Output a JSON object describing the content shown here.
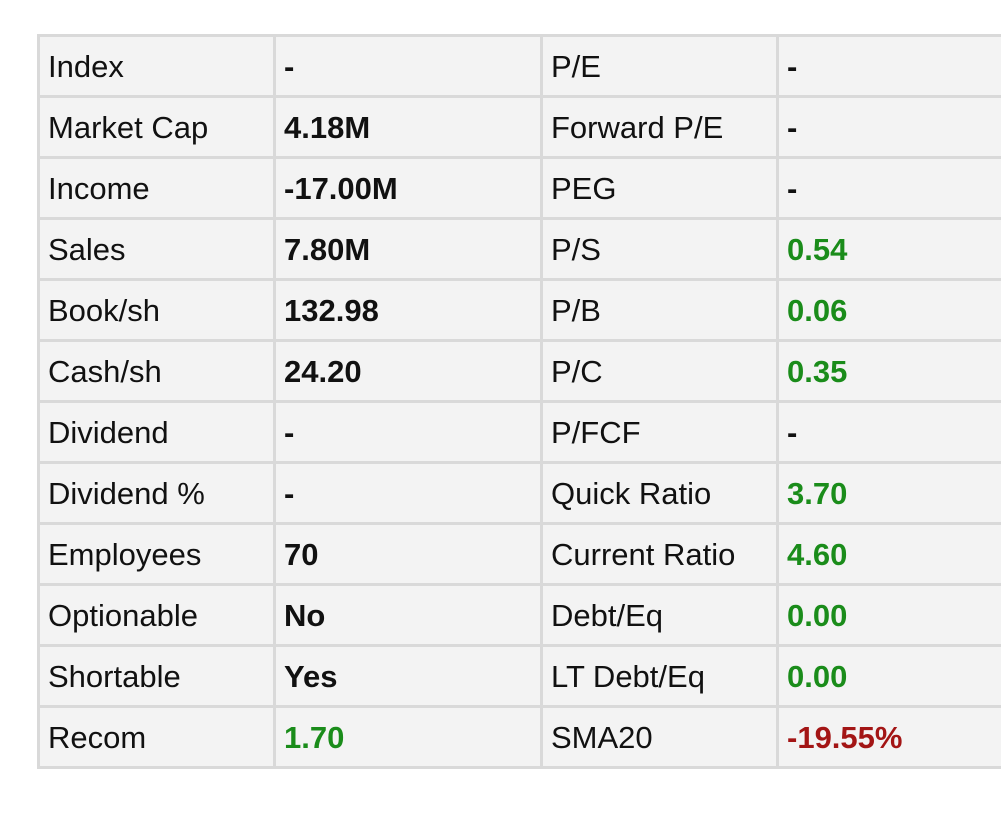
{
  "colors": {
    "positive": "#1a8c1a",
    "negative": "#a31515",
    "neutral": "#111111",
    "cell_bg": "#f3f3f3",
    "border": "#d9d9d9"
  },
  "rows": [
    {
      "label1": "Index",
      "value1": "-",
      "tone1": "neutral",
      "label2": "P/E",
      "value2": "-",
      "tone2": "neutral"
    },
    {
      "label1": "Market Cap",
      "value1": "4.18M",
      "tone1": "neutral",
      "label2": "Forward P/E",
      "value2": "-",
      "tone2": "neutral"
    },
    {
      "label1": "Income",
      "value1": "-17.00M",
      "tone1": "neutral",
      "label2": "PEG",
      "value2": "-",
      "tone2": "neutral"
    },
    {
      "label1": "Sales",
      "value1": "7.80M",
      "tone1": "neutral",
      "label2": "P/S",
      "value2": "0.54",
      "tone2": "positive"
    },
    {
      "label1": "Book/sh",
      "value1": "132.98",
      "tone1": "neutral",
      "label2": "P/B",
      "value2": "0.06",
      "tone2": "positive"
    },
    {
      "label1": "Cash/sh",
      "value1": "24.20",
      "tone1": "neutral",
      "label2": "P/C",
      "value2": "0.35",
      "tone2": "positive"
    },
    {
      "label1": "Dividend",
      "value1": "-",
      "tone1": "neutral",
      "label2": "P/FCF",
      "value2": "-",
      "tone2": "neutral"
    },
    {
      "label1": "Dividend %",
      "value1": "-",
      "tone1": "neutral",
      "label2": "Quick Ratio",
      "value2": "3.70",
      "tone2": "positive"
    },
    {
      "label1": "Employees",
      "value1": "70",
      "tone1": "neutral",
      "label2": "Current Ratio",
      "value2": "4.60",
      "tone2": "positive"
    },
    {
      "label1": "Optionable",
      "value1": "No",
      "tone1": "neutral",
      "label2": "Debt/Eq",
      "value2": "0.00",
      "tone2": "positive"
    },
    {
      "label1": "Shortable",
      "value1": "Yes",
      "tone1": "neutral",
      "label2": "LT Debt/Eq",
      "value2": "0.00",
      "tone2": "positive"
    },
    {
      "label1": "Recom",
      "value1": "1.70",
      "tone1": "positive",
      "label2": "SMA20",
      "value2": "-19.55%",
      "tone2": "negative"
    }
  ]
}
